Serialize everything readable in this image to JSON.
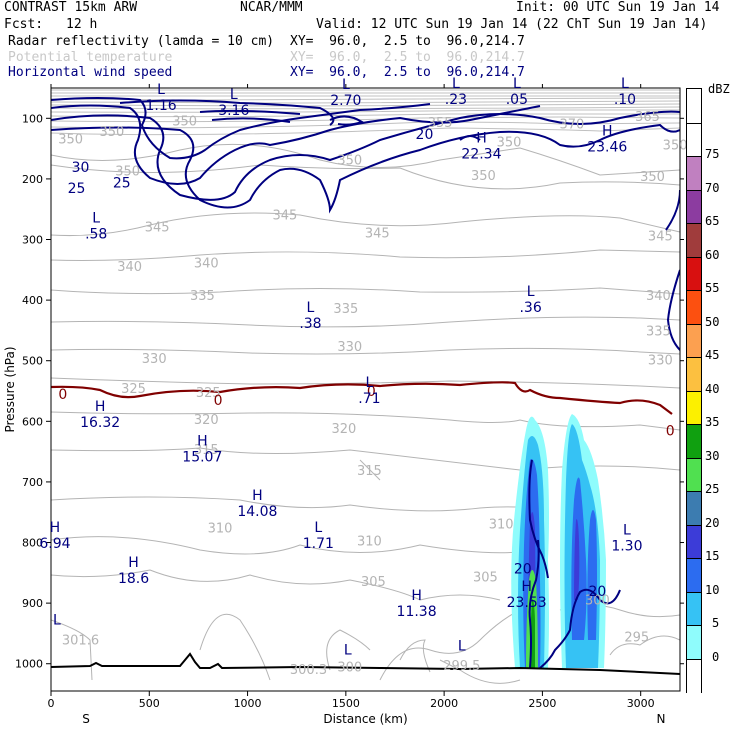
{
  "header": {
    "title_left": "CONTRAST 15km ARW",
    "org": "NCAR/MMM",
    "init": "Init: 00 UTC Sun 19 Jan 14",
    "fcst_label": "Fcst:",
    "fcst_value": "12 h",
    "valid": "Valid: 12 UTC Sun 19 Jan 14 (22 ChT Sun 19 Jan 14)",
    "fields": [
      {
        "name": "Radar reflectivity (lamda = 10 cm)",
        "xy": "XY=  96.0,  2.5 to  96.0,214.7",
        "color": "#000000"
      },
      {
        "name": "Potential temperature",
        "xy": "XY=  96.0,  2.5 to  96.0,214.7",
        "color": "#c8c8c8"
      },
      {
        "name": "Horizontal wind speed",
        "xy": "XY=  96.0,  2.5 to  96.0,214.7",
        "color": "#000080"
      }
    ]
  },
  "chart_data": {
    "type": "cross-section",
    "xlabel": "Distance (km)",
    "ylabel": "Pressure (hPa)",
    "xlim": [
      0,
      3200
    ],
    "ylim": [
      1045,
      50
    ],
    "x_ticks": [
      0,
      500,
      1000,
      1500,
      2000,
      2500,
      3000
    ],
    "y_ticks": [
      100,
      200,
      300,
      400,
      500,
      600,
      700,
      800,
      900,
      1000
    ],
    "x_end_labels": {
      "left": "S",
      "right": "N"
    },
    "colorbar": {
      "title": "dBZ",
      "levels": [
        0,
        5,
        10,
        15,
        20,
        25,
        30,
        35,
        40,
        45,
        50,
        55,
        60,
        65,
        70,
        75
      ],
      "colors": [
        "#ffffff",
        "#8ffcfc",
        "#36c2f4",
        "#2c6cf0",
        "#3c3cd8",
        "#3c7cb0",
        "#50e050",
        "#10a010",
        "#fcf000",
        "#fcc040",
        "#fca050",
        "#fc5010",
        "#d81010",
        "#a03c3c",
        "#8c3ca0",
        "#c080c0",
        "#ffffff"
      ]
    },
    "theta_labels": [
      {
        "x": 100,
        "p": 135,
        "text": "350"
      },
      {
        "x": 680,
        "p": 105,
        "text": "350"
      },
      {
        "x": 2330,
        "p": 140,
        "text": "350"
      },
      {
        "x": 1520,
        "p": 170,
        "text": "350"
      },
      {
        "x": 390,
        "p": 188,
        "text": "350"
      },
      {
        "x": 2200,
        "p": 195,
        "text": "350"
      },
      {
        "x": 3060,
        "p": 197,
        "text": "350"
      },
      {
        "x": 3035,
        "p": 98,
        "text": "365"
      },
      {
        "x": 2650,
        "p": 110,
        "text": "370"
      },
      {
        "x": 1980,
        "p": 108,
        "text": "355"
      },
      {
        "x": 3175,
        "p": 145,
        "text": "350"
      },
      {
        "x": 310,
        "p": 123,
        "text": "350"
      },
      {
        "x": 1190,
        "p": 260,
        "text": "345"
      },
      {
        "x": 1660,
        "p": 290,
        "text": "345"
      },
      {
        "x": 540,
        "p": 280,
        "text": "345"
      },
      {
        "x": 3100,
        "p": 295,
        "text": "345"
      },
      {
        "x": 400,
        "p": 345,
        "text": "340"
      },
      {
        "x": 790,
        "p": 340,
        "text": "340"
      },
      {
        "x": 3090,
        "p": 393,
        "text": "340"
      },
      {
        "x": 770,
        "p": 393,
        "text": "335"
      },
      {
        "x": 1500,
        "p": 415,
        "text": "335"
      },
      {
        "x": 3090,
        "p": 452,
        "text": "335"
      },
      {
        "x": 1520,
        "p": 477,
        "text": "330"
      },
      {
        "x": 525,
        "p": 497,
        "text": "330"
      },
      {
        "x": 3100,
        "p": 500,
        "text": "330"
      },
      {
        "x": 420,
        "p": 547,
        "text": "325"
      },
      {
        "x": 800,
        "p": 553,
        "text": "325"
      },
      {
        "x": 790,
        "p": 598,
        "text": "320"
      },
      {
        "x": 1490,
        "p": 613,
        "text": "320"
      },
      {
        "x": 790,
        "p": 647,
        "text": "315"
      },
      {
        "x": 1620,
        "p": 682,
        "text": "315"
      },
      {
        "x": 2290,
        "p": 770,
        "text": "310"
      },
      {
        "x": 860,
        "p": 777,
        "text": "310"
      },
      {
        "x": 1620,
        "p": 798,
        "text": "310"
      },
      {
        "x": 1640,
        "p": 865,
        "text": "305"
      },
      {
        "x": 2210,
        "p": 858,
        "text": "305"
      },
      {
        "x": 2780,
        "p": 896,
        "text": "300"
      },
      {
        "x": 2980,
        "p": 957,
        "text": "295"
      },
      {
        "x": 2090,
        "p": 1004,
        "text": "299.5"
      },
      {
        "x": 1520,
        "p": 1006,
        "text": "300"
      },
      {
        "x": 1310,
        "p": 1010,
        "text": "300.3"
      },
      {
        "x": 150,
        "p": 962,
        "text": "301.6"
      }
    ],
    "wind_labels": [
      {
        "x": 150,
        "p": 180,
        "text": "30",
        "color": "#000080"
      },
      {
        "x": 130,
        "p": 215,
        "text": "25",
        "color": "#000080"
      },
      {
        "x": 360,
        "p": 206,
        "text": "25",
        "color": "#000080"
      },
      {
        "x": 1900,
        "p": 126,
        "text": "20",
        "color": "#000080"
      },
      {
        "x": 2400,
        "p": 843,
        "text": "20",
        "color": "#000080"
      },
      {
        "x": 2780,
        "p": 880,
        "text": "20",
        "color": "#000080"
      },
      {
        "x": 60,
        "p": 555,
        "text": "0",
        "color": "#800000"
      },
      {
        "x": 850,
        "p": 565,
        "text": "0",
        "color": "#800000"
      },
      {
        "x": 1630,
        "p": 550,
        "text": "0",
        "color": "#800000"
      },
      {
        "x": 3150,
        "p": 615,
        "text": "0",
        "color": "#800000"
      }
    ],
    "hl_marks": [
      {
        "x": 560,
        "p": 60,
        "letter": "L",
        "value": "1.16"
      },
      {
        "x": 930,
        "p": 68,
        "letter": "L",
        "value": "3.16"
      },
      {
        "x": 1500,
        "p": 52,
        "letter": "L",
        "value": "2.70"
      },
      {
        "x": 2060,
        "p": 50,
        "letter": "L",
        "value": ".23"
      },
      {
        "x": 2370,
        "p": 50,
        "letter": "L",
        "value": ".05"
      },
      {
        "x": 2920,
        "p": 50,
        "letter": "L",
        "value": ".10"
      },
      {
        "x": 2190,
        "p": 140,
        "letter": "H",
        "value": "22.34"
      },
      {
        "x": 2830,
        "p": 128,
        "letter": "H",
        "value": "23.46"
      },
      {
        "x": 230,
        "p": 272,
        "letter": "L",
        "value": ".58"
      },
      {
        "x": 1320,
        "p": 420,
        "letter": "L",
        "value": ".38"
      },
      {
        "x": 2440,
        "p": 393,
        "letter": "L",
        "value": ".36"
      },
      {
        "x": 1620,
        "p": 543,
        "letter": "L",
        "value": ".71"
      },
      {
        "x": 250,
        "p": 583,
        "letter": "H",
        "value": "16.32"
      },
      {
        "x": 770,
        "p": 640,
        "letter": "H",
        "value": "15.07"
      },
      {
        "x": 1050,
        "p": 730,
        "letter": "H",
        "value": "14.08"
      },
      {
        "x": 1360,
        "p": 783,
        "letter": "L",
        "value": "1.71"
      },
      {
        "x": 20,
        "p": 783,
        "letter": "H",
        "value": "6.94"
      },
      {
        "x": 2930,
        "p": 787,
        "letter": "L",
        "value": "1.30"
      },
      {
        "x": 420,
        "p": 840,
        "letter": "H",
        "value": "18.6"
      },
      {
        "x": 1860,
        "p": 895,
        "letter": "H",
        "value": "11.38"
      },
      {
        "x": 2420,
        "p": 880,
        "letter": "H",
        "value": "23.53"
      },
      {
        "x": 30,
        "p": 935,
        "letter": "L",
        "value": ""
      },
      {
        "x": 1510,
        "p": 985,
        "letter": "L",
        "value": ""
      },
      {
        "x": 2090,
        "p": 978,
        "letter": "L",
        "value": ""
      }
    ]
  }
}
